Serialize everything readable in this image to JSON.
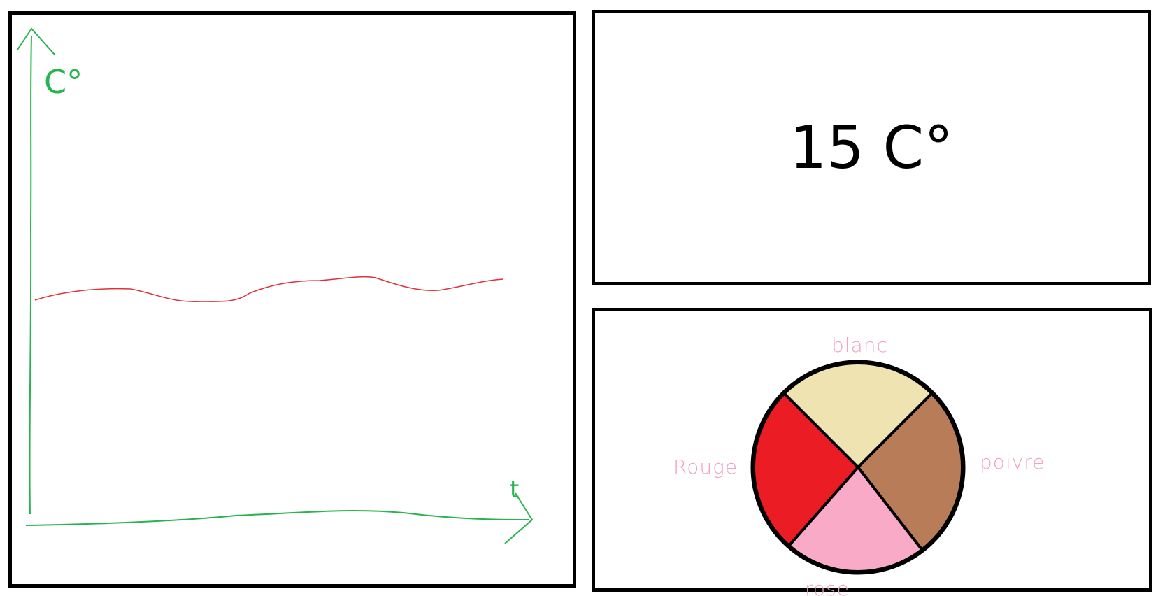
{
  "graph": {
    "y_axis_label": "C°",
    "x_axis_label": "t",
    "axis_color": "#27b34f",
    "line_color": "#e0303a"
  },
  "temperature": {
    "text": "15 C°"
  },
  "pie": {
    "slices": [
      {
        "name": "blanc",
        "label": "blanc",
        "value": 25,
        "color": "#efe3b2"
      },
      {
        "name": "poivre",
        "label": "poivre",
        "value": 27,
        "color": "#b87c58"
      },
      {
        "name": "rose",
        "label": "rose",
        "value": 22,
        "color": "#f9aac6"
      },
      {
        "name": "rouge",
        "label": "Rouge",
        "value": 26,
        "color": "#ec1c24"
      }
    ],
    "label_color": "#f2a3be"
  }
}
